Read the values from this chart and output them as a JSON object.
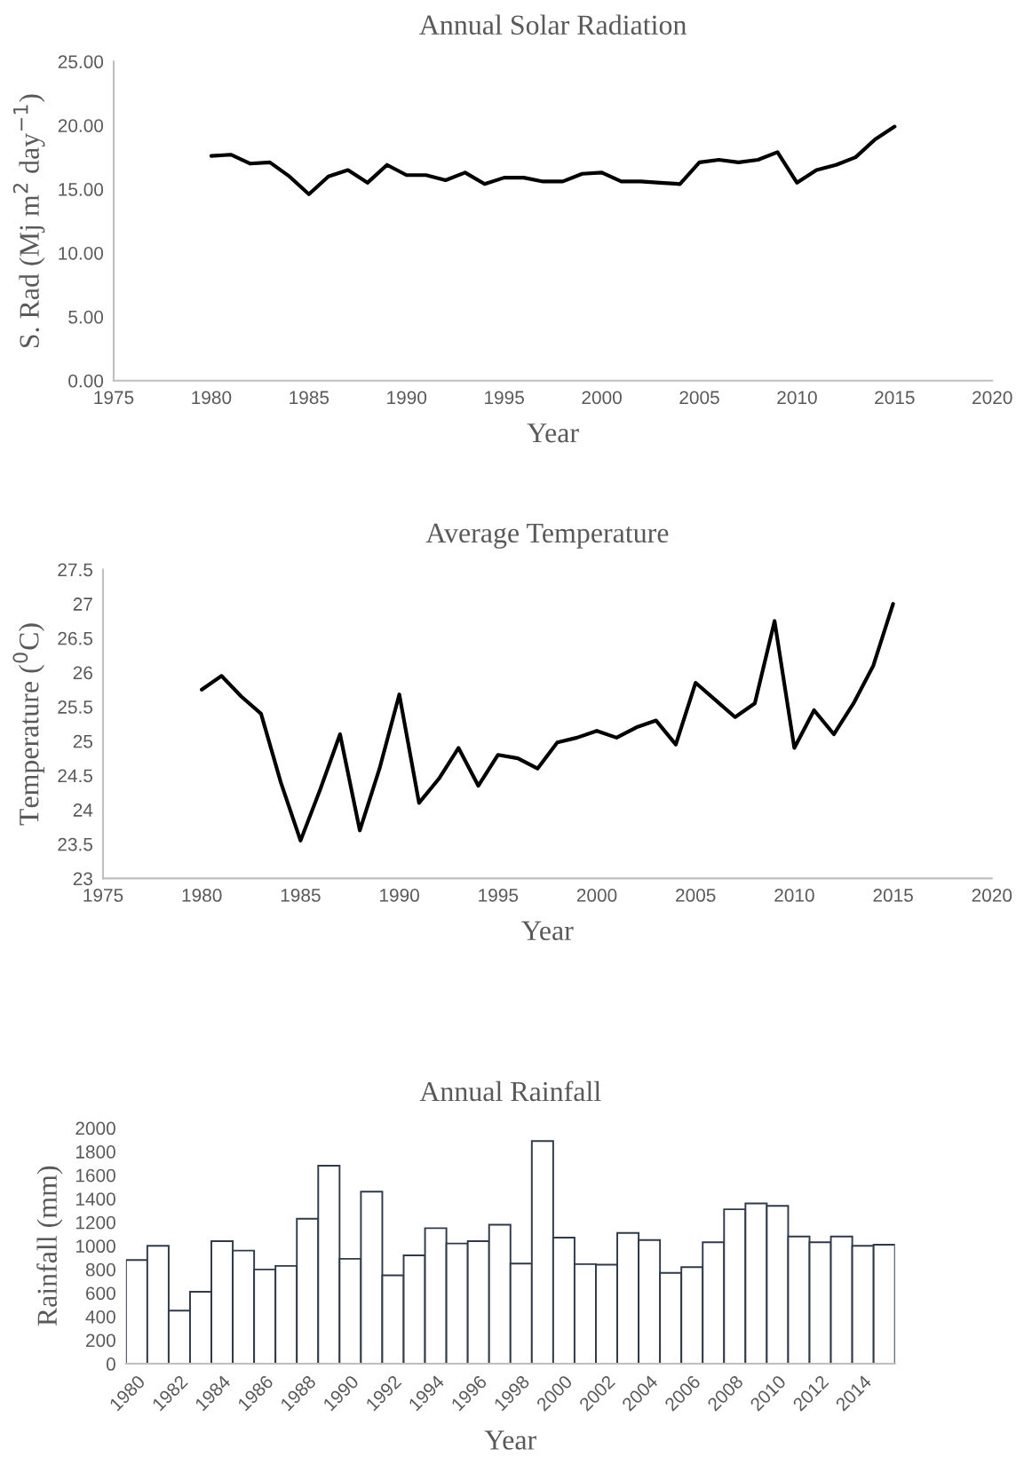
{
  "chart_data": [
    {
      "type": "line",
      "title": "Annual Solar Radiation",
      "xlabel": "Year",
      "ylabel": "S. Rad (Mj m$^{2}$ day$^{−1}$)",
      "x": [
        1980,
        1981,
        1982,
        1983,
        1984,
        1985,
        1986,
        1987,
        1988,
        1989,
        1990,
        1991,
        1992,
        1993,
        1994,
        1995,
        1996,
        1997,
        1998,
        1999,
        2000,
        2001,
        2002,
        2003,
        2004,
        2005,
        2006,
        2007,
        2008,
        2009,
        2010,
        2011,
        2012,
        2013,
        2014,
        2015
      ],
      "series": [
        {
          "color": "#000000",
          "values": [
            17.6,
            17.7,
            17.0,
            17.1,
            16.0,
            14.6,
            16.0,
            16.5,
            15.5,
            16.9,
            16.1,
            16.1,
            15.7,
            16.3,
            15.4,
            15.9,
            15.9,
            15.6,
            15.6,
            16.2,
            16.3,
            15.6,
            15.6,
            15.5,
            15.4,
            17.1,
            17.3,
            17.1,
            17.3,
            17.9,
            15.5,
            16.5,
            16.9,
            17.5,
            18.9,
            19.9
          ]
        }
      ],
      "xlim": [
        1975,
        2020
      ],
      "xticks": [
        1975,
        1980,
        1985,
        1990,
        1995,
        2000,
        2005,
        2010,
        2015,
        2020
      ],
      "ylim": [
        0,
        25
      ],
      "yticks": [
        {
          "value": 0,
          "label": "0.00"
        },
        {
          "value": 5,
          "label": "5.00"
        },
        {
          "value": 10,
          "label": "10.00"
        },
        {
          "value": 15,
          "label": "15.00"
        },
        {
          "value": 20,
          "label": "20.00"
        },
        {
          "value": 25,
          "label": "25.00"
        }
      ],
      "grid": false,
      "legend": false,
      "marker": "none",
      "line_style": "solid"
    },
    {
      "type": "line",
      "title": "Average Temperature",
      "xlabel": "Year",
      "ylabel": "Temperature ($^{0}$C)",
      "x": [
        1980,
        1981,
        1982,
        1983,
        1984,
        1985,
        1986,
        1987,
        1988,
        1989,
        1990,
        1991,
        1992,
        1993,
        1994,
        1995,
        1996,
        1997,
        1998,
        1999,
        2000,
        2001,
        2002,
        2003,
        2004,
        2005,
        2006,
        2007,
        2008,
        2009,
        2010,
        2011,
        2012,
        2013,
        2014,
        2015
      ],
      "series": [
        {
          "color": "#000000",
          "values": [
            25.75,
            25.95,
            25.65,
            25.4,
            24.4,
            23.55,
            24.3,
            25.1,
            23.7,
            24.6,
            25.68,
            24.1,
            24.45,
            24.9,
            24.35,
            24.8,
            24.75,
            24.6,
            24.98,
            25.05,
            25.15,
            25.05,
            25.2,
            25.3,
            24.95,
            25.85,
            25.6,
            25.35,
            25.55,
            26.75,
            24.9,
            25.45,
            25.1,
            25.55,
            26.1,
            27.0
          ]
        }
      ],
      "xlim": [
        1975,
        2020
      ],
      "xticks": [
        1975,
        1980,
        1985,
        1990,
        1995,
        2000,
        2005,
        2010,
        2015,
        2020
      ],
      "ylim": [
        23,
        27.5
      ],
      "yticks": [
        23,
        23.5,
        24,
        24.5,
        25,
        25.5,
        26,
        26.5,
        27,
        27.5
      ],
      "grid": false,
      "legend": false,
      "marker": "none",
      "line_style": "solid"
    },
    {
      "type": "bar",
      "title": "Annual Rainfall",
      "xlabel": "Year",
      "ylabel": "Rainfall (mm)",
      "categories": [
        "1980",
        null,
        "1982",
        null,
        "1984",
        null,
        "1986",
        null,
        "1988",
        null,
        "1990",
        null,
        "1992",
        null,
        "1994",
        null,
        "1996",
        null,
        "1998",
        null,
        "2000",
        null,
        "2002",
        null,
        "2004",
        null,
        "2006",
        null,
        "2008",
        null,
        "2010",
        null,
        "2012",
        null,
        "2014",
        null
      ],
      "series": [
        {
          "color": "#ffffff",
          "values": [
            880,
            1000,
            450,
            610,
            1040,
            960,
            800,
            830,
            1230,
            1680,
            890,
            1460,
            750,
            920,
            1150,
            1020,
            1040,
            1180,
            850,
            1890,
            1070,
            845,
            840,
            1110,
            1050,
            770,
            820,
            1030,
            1310,
            1360,
            1340,
            1080,
            1030,
            1080,
            1000,
            1010
          ]
        }
      ],
      "ylim": [
        0,
        2000
      ],
      "yticks": [
        0,
        200,
        400,
        600,
        800,
        1000,
        1200,
        1400,
        1600,
        1800,
        2000
      ],
      "grid": false,
      "legend": false
    }
  ]
}
